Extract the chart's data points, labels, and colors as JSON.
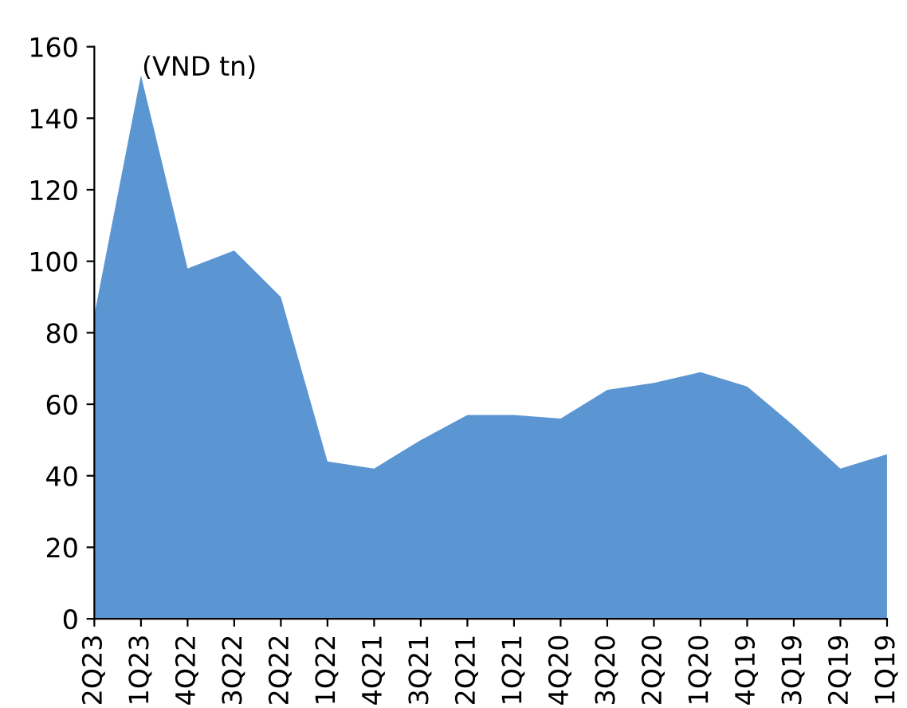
{
  "chart_data": {
    "type": "area",
    "annotations": [
      "(VND tn)"
    ],
    "categories": [
      "2Q23",
      "1Q23",
      "4Q22",
      "3Q22",
      "2Q22",
      "1Q22",
      "4Q21",
      "3Q21",
      "2Q21",
      "1Q21",
      "4Q20",
      "3Q20",
      "2Q20",
      "1Q20",
      "4Q19",
      "3Q19",
      "2Q19",
      "1Q19"
    ],
    "values": [
      85,
      152,
      98,
      103,
      90,
      44,
      42,
      50,
      57,
      57,
      56,
      64,
      66,
      69,
      65,
      54,
      42,
      46
    ],
    "color": "#5b96d3",
    "ylim": [
      0,
      160
    ],
    "yticks": [
      0,
      20,
      40,
      60,
      80,
      100,
      120,
      140,
      160
    ],
    "grid": false
  }
}
